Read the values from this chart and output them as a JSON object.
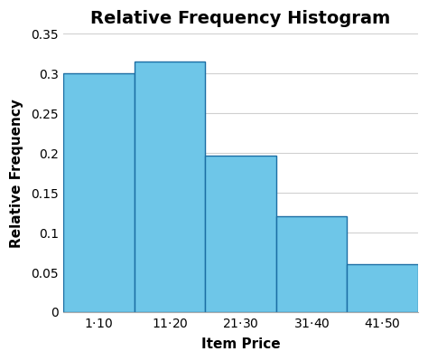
{
  "title": "Relative Frequency Histogram",
  "xlabel": "Item Price",
  "ylabel": "Relative Frequency",
  "categories": [
    "$1 · $10",
    "$11 · $20",
    "$21 · $30",
    "$31 · $40",
    "$41 · $50"
  ],
  "values": [
    0.3,
    0.315,
    0.197,
    0.12,
    0.06
  ],
  "bar_color": "#6EC6E8",
  "bar_edge_color": "#1C6EA4",
  "bar_edge_width": 1.0,
  "ylim": [
    0,
    0.35
  ],
  "yticks": [
    0,
    0.05,
    0.1,
    0.15,
    0.2,
    0.25,
    0.3,
    0.35
  ],
  "title_fontsize": 14,
  "label_fontsize": 11,
  "tick_fontsize": 10,
  "background_color": "#ffffff",
  "grid_color": "#d0d0d0",
  "spine_color": "#aaaaaa"
}
